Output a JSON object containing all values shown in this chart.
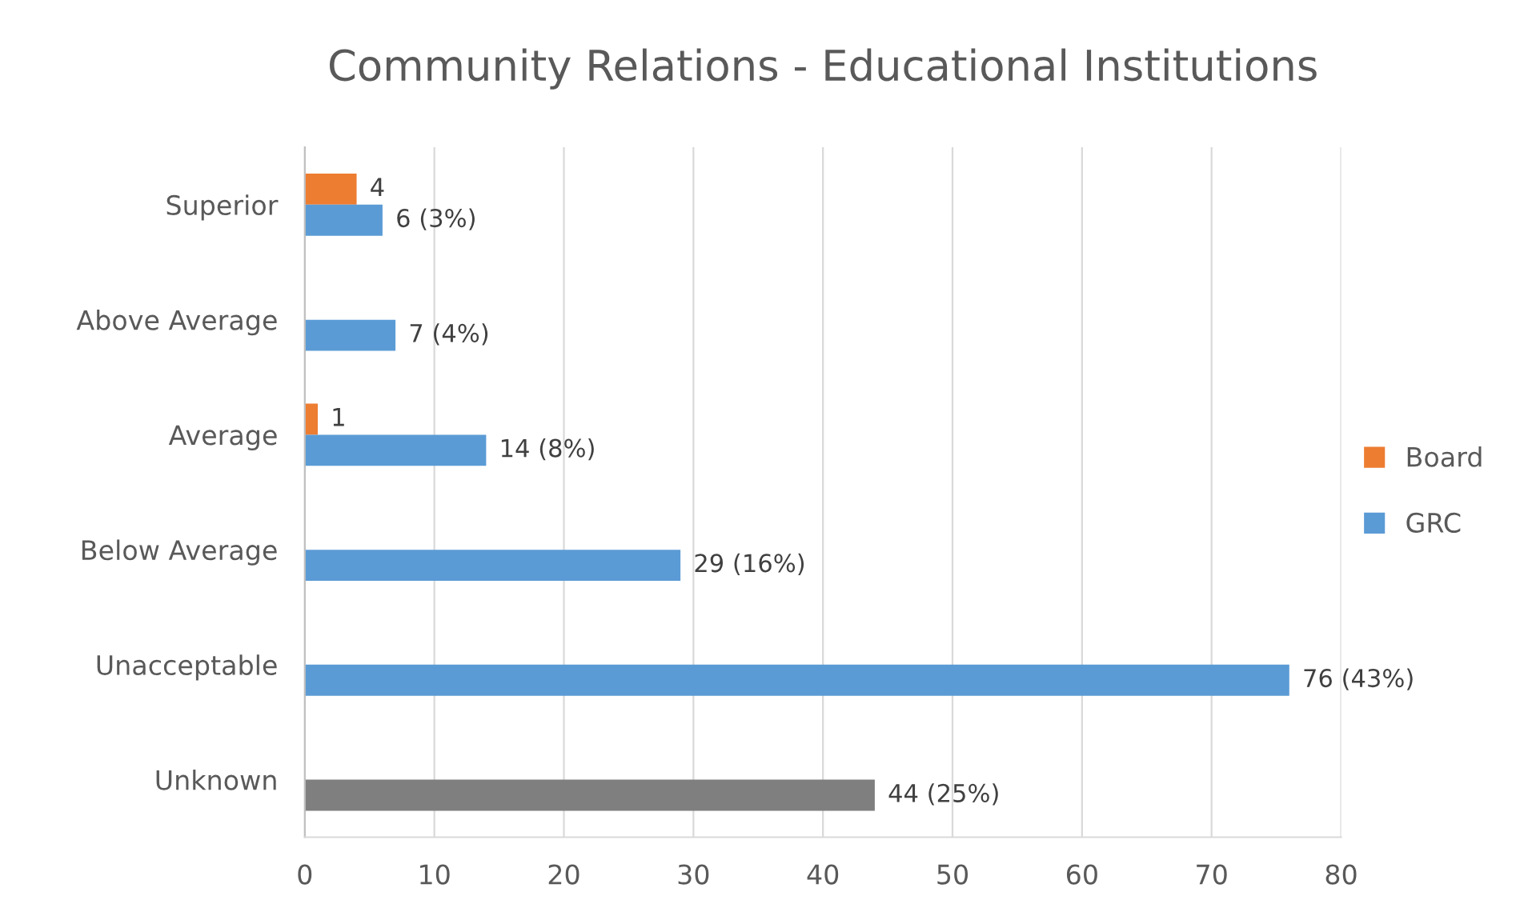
{
  "chart_data": {
    "type": "bar",
    "orientation": "horizontal",
    "title": "Community Relations - Educational Institutions",
    "categories": [
      "Superior",
      "Above Average",
      "Average",
      "Below Average",
      "Unacceptable",
      "Unknown"
    ],
    "series": [
      {
        "name": "Board",
        "color": "#ed7d31",
        "values": [
          4,
          null,
          1,
          null,
          null,
          null
        ],
        "value_labels": [
          "4",
          null,
          "1",
          null,
          null,
          null
        ]
      },
      {
        "name": "GRC",
        "color": "#5b9bd5",
        "colors": [
          "#5b9bd5",
          "#5b9bd5",
          "#5b9bd5",
          "#5b9bd5",
          "#5b9bd5",
          "#7f7f7f"
        ],
        "values": [
          6,
          7,
          14,
          29,
          76,
          44
        ],
        "value_labels": [
          "6 (3%)",
          "7 (4%)",
          "14 (8%)",
          "29 (16%)",
          "76 (43%)",
          "44 (25%)"
        ]
      }
    ],
    "xlim": [
      0,
      80
    ],
    "xticks": [
      0,
      10,
      20,
      30,
      40,
      50,
      60,
      70,
      80
    ],
    "grid": "x",
    "legend": "right"
  }
}
